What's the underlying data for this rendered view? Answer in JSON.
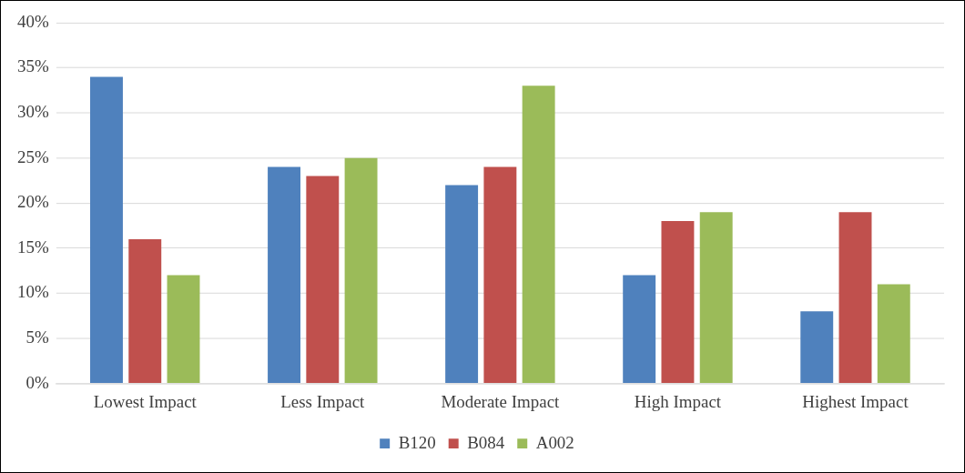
{
  "chart_data": {
    "type": "bar",
    "categories": [
      "Lowest Impact",
      "Less Impact",
      "Moderate Impact",
      "High Impact",
      "Highest Impact"
    ],
    "series": [
      {
        "name": "B120",
        "color": "#4f81bd",
        "values": [
          34,
          24,
          22,
          12,
          8
        ]
      },
      {
        "name": "B084",
        "color": "#c0504d",
        "values": [
          16,
          23,
          24,
          18,
          19
        ]
      },
      {
        "name": "A002",
        "color": "#9bbb59",
        "values": [
          12,
          25,
          33,
          19,
          11
        ]
      }
    ],
    "ylim": [
      0,
      40
    ],
    "yticks": [
      {
        "value": 0,
        "label": "0%"
      },
      {
        "value": 5,
        "label": "5%"
      },
      {
        "value": 10,
        "label": "10%"
      },
      {
        "value": 15,
        "label": "15%"
      },
      {
        "value": 20,
        "label": "20%"
      },
      {
        "value": 25,
        "label": "25%"
      },
      {
        "value": 30,
        "label": "30%"
      },
      {
        "value": 35,
        "label": "35%"
      },
      {
        "value": 40,
        "label": "40%"
      }
    ],
    "grid": "y",
    "legend": "bottom"
  }
}
